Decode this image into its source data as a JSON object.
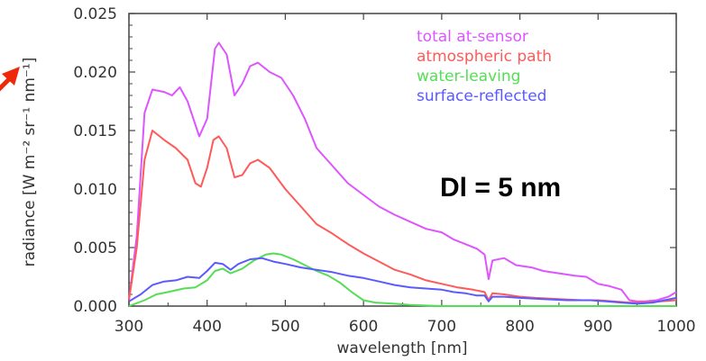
{
  "chart_data": {
    "type": "line",
    "xlabel": "wavelength [nm]",
    "ylabel": "radiance [W m⁻² sr⁻¹ nm⁻¹]",
    "xlim": [
      300,
      1000
    ],
    "ylim": [
      0,
      0.025
    ],
    "xticks": [
      300,
      400,
      500,
      600,
      700,
      800,
      900,
      1000
    ],
    "xtick_labels": [
      "300",
      "400",
      "500",
      "600",
      "700",
      "800",
      "900",
      "1000"
    ],
    "yticks": [
      0,
      0.005,
      0.01,
      0.015,
      0.02,
      0.025
    ],
    "ytick_labels": [
      "0.000",
      "0.005",
      "0.010",
      "0.015",
      "0.020",
      "0.025"
    ],
    "grid": false,
    "legend_position": "top-right",
    "annotation": "Dl = 5 nm",
    "series": [
      {
        "name": "total at-sensor",
        "color": "#dd55ff",
        "points": [
          [
            300,
            0.0005
          ],
          [
            310,
            0.006
          ],
          [
            320,
            0.0165
          ],
          [
            330,
            0.0185
          ],
          [
            345,
            0.0183
          ],
          [
            355,
            0.018
          ],
          [
            365,
            0.0187
          ],
          [
            375,
            0.0175
          ],
          [
            390,
            0.0145
          ],
          [
            400,
            0.016
          ],
          [
            410,
            0.022
          ],
          [
            415,
            0.0225
          ],
          [
            425,
            0.0215
          ],
          [
            435,
            0.018
          ],
          [
            445,
            0.019
          ],
          [
            455,
            0.0205
          ],
          [
            465,
            0.0208
          ],
          [
            480,
            0.02
          ],
          [
            495,
            0.0195
          ],
          [
            510,
            0.018
          ],
          [
            525,
            0.016
          ],
          [
            540,
            0.0135
          ],
          [
            560,
            0.012
          ],
          [
            580,
            0.0105
          ],
          [
            600,
            0.0095
          ],
          [
            620,
            0.0085
          ],
          [
            640,
            0.0078
          ],
          [
            660,
            0.0072
          ],
          [
            680,
            0.0066
          ],
          [
            700,
            0.0063
          ],
          [
            715,
            0.0057
          ],
          [
            730,
            0.0053
          ],
          [
            745,
            0.0049
          ],
          [
            755,
            0.0044
          ],
          [
            760,
            0.0023
          ],
          [
            765,
            0.0039
          ],
          [
            780,
            0.0041
          ],
          [
            795,
            0.0035
          ],
          [
            815,
            0.0033
          ],
          [
            830,
            0.003
          ],
          [
            850,
            0.0028
          ],
          [
            870,
            0.0026
          ],
          [
            885,
            0.0025
          ],
          [
            900,
            0.0019
          ],
          [
            915,
            0.0017
          ],
          [
            930,
            0.0014
          ],
          [
            940,
            0.0005
          ],
          [
            950,
            0.0004
          ],
          [
            960,
            0.0004
          ],
          [
            975,
            0.0005
          ],
          [
            990,
            0.0008
          ],
          [
            1000,
            0.0012
          ]
        ]
      },
      {
        "name": "atmospheric path",
        "color": "#ff5a5a",
        "points": [
          [
            300,
            0.0005
          ],
          [
            310,
            0.005
          ],
          [
            320,
            0.0125
          ],
          [
            330,
            0.015
          ],
          [
            345,
            0.0142
          ],
          [
            360,
            0.0135
          ],
          [
            375,
            0.0125
          ],
          [
            385,
            0.0105
          ],
          [
            392,
            0.0102
          ],
          [
            400,
            0.0118
          ],
          [
            408,
            0.0142
          ],
          [
            415,
            0.0145
          ],
          [
            425,
            0.0135
          ],
          [
            435,
            0.011
          ],
          [
            445,
            0.0112
          ],
          [
            455,
            0.0122
          ],
          [
            465,
            0.0125
          ],
          [
            480,
            0.0118
          ],
          [
            500,
            0.01
          ],
          [
            520,
            0.0085
          ],
          [
            540,
            0.007
          ],
          [
            560,
            0.0062
          ],
          [
            580,
            0.0053
          ],
          [
            600,
            0.0045
          ],
          [
            620,
            0.0038
          ],
          [
            640,
            0.0031
          ],
          [
            660,
            0.0027
          ],
          [
            680,
            0.0022
          ],
          [
            700,
            0.0019
          ],
          [
            720,
            0.0016
          ],
          [
            740,
            0.0014
          ],
          [
            755,
            0.0012
          ],
          [
            760,
            0.0005
          ],
          [
            765,
            0.0011
          ],
          [
            780,
            0.001
          ],
          [
            800,
            0.0008
          ],
          [
            820,
            0.0007
          ],
          [
            850,
            0.0006
          ],
          [
            880,
            0.0005
          ],
          [
            900,
            0.0005
          ],
          [
            920,
            0.0004
          ],
          [
            940,
            0.0003
          ],
          [
            960,
            0.0003
          ],
          [
            980,
            0.0004
          ],
          [
            1000,
            0.0005
          ]
        ]
      },
      {
        "name": "water-leaving",
        "color": "#55dd55",
        "points": [
          [
            300,
            0.0
          ],
          [
            320,
            0.0005
          ],
          [
            335,
            0.001
          ],
          [
            350,
            0.0012
          ],
          [
            370,
            0.0015
          ],
          [
            385,
            0.0016
          ],
          [
            400,
            0.0022
          ],
          [
            410,
            0.003
          ],
          [
            420,
            0.0032
          ],
          [
            430,
            0.0028
          ],
          [
            445,
            0.0032
          ],
          [
            460,
            0.0039
          ],
          [
            475,
            0.0044
          ],
          [
            485,
            0.0045
          ],
          [
            495,
            0.0044
          ],
          [
            510,
            0.004
          ],
          [
            525,
            0.0035
          ],
          [
            540,
            0.003
          ],
          [
            555,
            0.0026
          ],
          [
            570,
            0.002
          ],
          [
            585,
            0.0012
          ],
          [
            600,
            0.0005
          ],
          [
            615,
            0.0003
          ],
          [
            640,
            0.0002
          ],
          [
            660,
            0.0001
          ],
          [
            700,
            0.0
          ],
          [
            800,
            0.0
          ],
          [
            900,
            0.0
          ],
          [
            1000,
            0.0
          ]
        ]
      },
      {
        "name": "surface-reflected",
        "color": "#5a5aff",
        "points": [
          [
            300,
            0.0004
          ],
          [
            315,
            0.001
          ],
          [
            330,
            0.0018
          ],
          [
            345,
            0.0021
          ],
          [
            360,
            0.0022
          ],
          [
            375,
            0.0025
          ],
          [
            390,
            0.0024
          ],
          [
            400,
            0.003
          ],
          [
            410,
            0.0037
          ],
          [
            420,
            0.0036
          ],
          [
            430,
            0.0031
          ],
          [
            440,
            0.0036
          ],
          [
            455,
            0.004
          ],
          [
            470,
            0.0041
          ],
          [
            485,
            0.0038
          ],
          [
            500,
            0.0036
          ],
          [
            520,
            0.0033
          ],
          [
            540,
            0.0031
          ],
          [
            560,
            0.0029
          ],
          [
            580,
            0.0026
          ],
          [
            600,
            0.0024
          ],
          [
            620,
            0.0021
          ],
          [
            640,
            0.0018
          ],
          [
            660,
            0.0016
          ],
          [
            680,
            0.0015
          ],
          [
            700,
            0.0014
          ],
          [
            715,
            0.0012
          ],
          [
            730,
            0.0011
          ],
          [
            745,
            0.0009
          ],
          [
            755,
            0.0009
          ],
          [
            760,
            0.0004
          ],
          [
            765,
            0.0008
          ],
          [
            780,
            0.0008
          ],
          [
            800,
            0.0007
          ],
          [
            830,
            0.0006
          ],
          [
            860,
            0.0005
          ],
          [
            890,
            0.0005
          ],
          [
            910,
            0.0004
          ],
          [
            930,
            0.0003
          ],
          [
            950,
            0.0002
          ],
          [
            970,
            0.0003
          ],
          [
            985,
            0.0005
          ],
          [
            1000,
            0.0007
          ]
        ]
      }
    ]
  },
  "arrow": {
    "color": "#f0280a"
  }
}
